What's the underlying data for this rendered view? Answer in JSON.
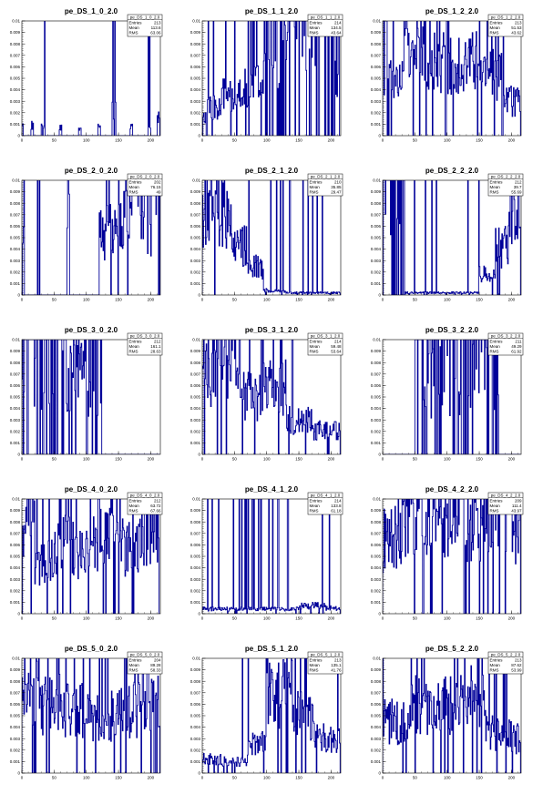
{
  "chart_data": [
    {
      "type": "line",
      "title": "pe_DS_1_0_2.0",
      "xlim": [
        0,
        215
      ],
      "ylim": [
        0,
        0.01
      ],
      "y_ticks": [
        "0",
        "0.001",
        "0.002",
        "0.003",
        "0.004",
        "0.005",
        "0.006",
        "0.007",
        "0.008",
        "0.009",
        "0.01"
      ],
      "x_ticks": [
        "0",
        "50",
        "100",
        "150",
        "200"
      ],
      "stats": {
        "name": "pe_DS_1_0_2.0",
        "labels": [
          "Entries",
          "Mean",
          "RMS"
        ],
        "values": [
          "213",
          "113.6",
          "63.06"
        ]
      },
      "bands": [
        [
          0,
          2,
          0.0012
        ],
        [
          14,
          18,
          0.0009
        ],
        [
          30,
          36,
          0.001
        ],
        [
          58,
          62,
          0.0008
        ],
        [
          88,
          92,
          0.0006
        ],
        [
          118,
          122,
          0.0011
        ],
        [
          140,
          146,
          0.0021
        ],
        [
          168,
          172,
          0.0008
        ],
        [
          196,
          200,
          0.001
        ],
        [
          210,
          214,
          0.0015
        ]
      ]
    },
    {
      "type": "line",
      "title": "pe_DS_1_1_2.0",
      "xlim": [
        0,
        215
      ],
      "ylim": [
        0,
        0.01
      ],
      "y_ticks": [
        "0",
        "0.001",
        "0.002",
        "0.003",
        "0.004",
        "0.005",
        "0.006",
        "0.007",
        "0.008",
        "0.009",
        "0.01"
      ],
      "x_ticks": [
        "0",
        "50",
        "100",
        "150",
        "200"
      ],
      "stats": {
        "name": "pe_DS_1_1_2.0",
        "labels": [
          "Entries",
          "Mean",
          "RMS"
        ],
        "values": [
          "214",
          "134.5",
          "43.64"
        ]
      },
      "bands": [
        [
          0,
          6,
          0.0014
        ],
        [
          8,
          30,
          0.0024
        ],
        [
          30,
          62,
          0.0036
        ],
        [
          62,
          95,
          0.0042
        ],
        [
          95,
          110,
          0.01
        ],
        [
          110,
          150,
          0.01
        ],
        [
          150,
          175,
          0.01
        ],
        [
          175,
          215,
          0.01
        ]
      ]
    },
    {
      "type": "line",
      "title": "pe_DS_1_2_2.0",
      "xlim": [
        0,
        215
      ],
      "ylim": [
        0,
        0.01
      ],
      "y_ticks": [
        "0",
        "0.001",
        "0.002",
        "0.003",
        "0.004",
        "0.005",
        "0.006",
        "0.007",
        "0.008",
        "0.009",
        "0.01"
      ],
      "x_ticks": [
        "0",
        "50",
        "100",
        "150",
        "200"
      ],
      "stats": {
        "name": "pe_DS_1_2_2.0",
        "labels": [
          "Entries",
          "Mean",
          "RMS"
        ],
        "values": [
          "213",
          "51.53",
          "43.62"
        ]
      },
      "bands": [
        [
          0,
          10,
          0.01
        ],
        [
          10,
          30,
          0.005
        ],
        [
          30,
          70,
          0.0075
        ],
        [
          70,
          110,
          0.0062
        ],
        [
          110,
          150,
          0.0065
        ],
        [
          150,
          185,
          0.0052
        ],
        [
          185,
          215,
          0.003
        ]
      ]
    },
    {
      "type": "line",
      "title": "pe_DS_2_0_2.0",
      "xlim": [
        0,
        215
      ],
      "ylim": [
        0,
        0.01
      ],
      "y_ticks": [
        "0",
        "0.001",
        "0.002",
        "0.003",
        "0.004",
        "0.005",
        "0.006",
        "0.007",
        "0.008",
        "0.009",
        "0.01"
      ],
      "x_ticks": [
        "0",
        "50",
        "100",
        "150",
        "200"
      ],
      "stats": {
        "name": "pe_DS_2_0_2.0",
        "labels": [
          "Entries",
          "Mean",
          "RMS"
        ],
        "values": [
          "202",
          "76.15",
          "49"
        ]
      },
      "bands": [
        [
          0,
          4,
          0.01
        ],
        [
          24,
          28,
          0.01
        ],
        [
          70,
          74,
          0.01
        ],
        [
          120,
          150,
          0.0055
        ],
        [
          150,
          170,
          0.0068
        ],
        [
          170,
          190,
          0.0085
        ],
        [
          190,
          215,
          0.01
        ]
      ]
    },
    {
      "type": "line",
      "title": "pe_DS_2_1_2.0",
      "xlim": [
        0,
        215
      ],
      "ylim": [
        0,
        0.01
      ],
      "y_ticks": [
        "0",
        "0.001",
        "0.002",
        "0.003",
        "0.004",
        "0.005",
        "0.006",
        "0.007",
        "0.008",
        "0.009",
        "0.01"
      ],
      "x_ticks": [
        "0",
        "50",
        "100",
        "150",
        "200"
      ],
      "stats": {
        "name": "pe_DS_2_1_2.0",
        "labels": [
          "Entries",
          "Mean",
          "RMS"
        ],
        "values": [
          "210",
          "35.85",
          "29.47"
        ]
      },
      "bands": [
        [
          0,
          20,
          0.0075
        ],
        [
          20,
          45,
          0.0072
        ],
        [
          45,
          70,
          0.0042
        ],
        [
          70,
          95,
          0.0025
        ],
        [
          95,
          130,
          0.0004
        ],
        [
          130,
          215,
          0.0002
        ]
      ]
    },
    {
      "type": "line",
      "title": "pe_DS_2_2_2.0",
      "xlim": [
        0,
        215
      ],
      "ylim": [
        0,
        0.01
      ],
      "y_ticks": [
        "0",
        "0.001",
        "0.002",
        "0.003",
        "0.004",
        "0.005",
        "0.006",
        "0.007",
        "0.008",
        "0.009",
        "0.01"
      ],
      "x_ticks": [
        "0",
        "50",
        "100",
        "150",
        "200"
      ],
      "stats": {
        "name": "pe_DS_2_2_2.0",
        "labels": [
          "Entries",
          "Mean",
          "RMS"
        ],
        "values": [
          "212",
          "39.7",
          "55.69"
        ]
      },
      "bands": [
        [
          0,
          20,
          0.01
        ],
        [
          20,
          35,
          0.01
        ],
        [
          35,
          150,
          0.0002
        ],
        [
          150,
          175,
          0.0018
        ],
        [
          175,
          195,
          0.0042
        ],
        [
          195,
          215,
          0.0078
        ]
      ]
    },
    {
      "type": "line",
      "title": "pe_DS_3_0_2.0",
      "xlim": [
        0,
        215
      ],
      "ylim": [
        0,
        0.01
      ],
      "y_ticks": [
        "0",
        "0.001",
        "0.002",
        "0.003",
        "0.004",
        "0.005",
        "0.006",
        "0.007",
        "0.008",
        "0.009",
        "0.01"
      ],
      "x_ticks": [
        "0",
        "50",
        "100",
        "150",
        "200"
      ],
      "stats": {
        "name": "pe_DS_3_0_2.0",
        "labels": [
          "Entries",
          "Mean",
          "RMS"
        ],
        "values": [
          "212",
          "161.1",
          "28.63"
        ]
      },
      "bands": [
        [
          0,
          70,
          0.01
        ],
        [
          70,
          85,
          0.0068
        ],
        [
          85,
          100,
          0.0082
        ],
        [
          100,
          125,
          0.01
        ],
        [
          125,
          215,
          0.0
        ]
      ]
    },
    {
      "type": "line",
      "title": "pe_DS_3_1_2.0",
      "xlim": [
        0,
        215
      ],
      "ylim": [
        0,
        0.01
      ],
      "y_ticks": [
        "0",
        "0.001",
        "0.002",
        "0.003",
        "0.004",
        "0.005",
        "0.006",
        "0.007",
        "0.008",
        "0.009",
        "0.01"
      ],
      "x_ticks": [
        "0",
        "50",
        "100",
        "150",
        "200"
      ],
      "stats": {
        "name": "pe_DS_3_1_2.0",
        "labels": [
          "Entries",
          "Mean",
          "RMS"
        ],
        "values": [
          "214",
          "59.48",
          "53.64"
        ]
      },
      "bands": [
        [
          0,
          30,
          0.0075
        ],
        [
          30,
          60,
          0.0085
        ],
        [
          60,
          90,
          0.005
        ],
        [
          90,
          130,
          0.006
        ],
        [
          130,
          170,
          0.003
        ],
        [
          170,
          215,
          0.0022
        ]
      ]
    },
    {
      "type": "line",
      "title": "pe_DS_3_2_2.0",
      "xlim": [
        0,
        215
      ],
      "ylim": [
        0,
        0.01
      ],
      "y_ticks": [
        "0",
        "0.001",
        "0.002",
        "0.003",
        "0.004",
        "0.005",
        "0.006",
        "0.007",
        "0.008",
        "0.009",
        "0.01"
      ],
      "x_ticks": [
        "0",
        "50",
        "100",
        "150",
        "200"
      ],
      "stats": {
        "name": "pe_DS_3_2_2.0",
        "labels": [
          "Entries",
          "Mean",
          "RMS"
        ],
        "values": [
          "211",
          "49.29",
          "61.92"
        ]
      },
      "bands": [
        [
          0,
          50,
          0.0
        ],
        [
          50,
          90,
          0.01
        ],
        [
          90,
          150,
          0.01
        ],
        [
          150,
          180,
          0.01
        ],
        [
          180,
          215,
          0.0
        ]
      ]
    },
    {
      "type": "line",
      "title": "pe_DS_4_0_2.0",
      "xlim": [
        0,
        215
      ],
      "ylim": [
        0,
        0.01
      ],
      "y_ticks": [
        "0",
        "0.001",
        "0.002",
        "0.003",
        "0.004",
        "0.005",
        "0.006",
        "0.007",
        "0.008",
        "0.009",
        "0.01"
      ],
      "x_ticks": [
        "0",
        "50",
        "100",
        "150",
        "200"
      ],
      "stats": {
        "name": "pe_DS_4_0_2.0",
        "labels": [
          "Entries",
          "Mean",
          "RMS"
        ],
        "values": [
          "212",
          "63.72",
          "67.66"
        ]
      },
      "bands": [
        [
          0,
          20,
          0.0085
        ],
        [
          20,
          50,
          0.0045
        ],
        [
          50,
          80,
          0.006
        ],
        [
          80,
          110,
          0.005
        ],
        [
          110,
          150,
          0.0065
        ],
        [
          150,
          190,
          0.0058
        ],
        [
          190,
          215,
          0.0075
        ]
      ]
    },
    {
      "type": "line",
      "title": "pe_DS_4_1_2.0",
      "xlim": [
        0,
        215
      ],
      "ylim": [
        0,
        0.01
      ],
      "y_ticks": [
        "0",
        "0.001",
        "0.002",
        "0.003",
        "0.004",
        "0.005",
        "0.006",
        "0.007",
        "0.008",
        "0.009",
        "0.01"
      ],
      "x_ticks": [
        "0",
        "50",
        "100",
        "150",
        "200"
      ],
      "stats": {
        "name": "pe_DS_4_1_2.0",
        "labels": [
          "Entries",
          "Mean",
          "RMS"
        ],
        "values": [
          "214",
          "133.8",
          "61.18"
        ]
      },
      "bands": [
        [
          0,
          50,
          0.0004
        ],
        [
          50,
          100,
          0.0004
        ],
        [
          100,
          150,
          0.0004
        ],
        [
          150,
          190,
          0.0007
        ],
        [
          190,
          215,
          0.0005
        ]
      ]
    },
    {
      "type": "line",
      "title": "pe_DS_4_2_2.0",
      "xlim": [
        0,
        215
      ],
      "ylim": [
        0,
        0.01
      ],
      "y_ticks": [
        "0",
        "0.001",
        "0.002",
        "0.003",
        "0.004",
        "0.005",
        "0.006",
        "0.007",
        "0.008",
        "0.009",
        "0.01"
      ],
      "x_ticks": [
        "0",
        "50",
        "100",
        "150",
        "200"
      ],
      "stats": {
        "name": "pe_DS_4_2_2.0",
        "labels": [
          "Entries",
          "Mean",
          "RMS"
        ],
        "values": [
          "209",
          "111.4",
          "43.97"
        ]
      },
      "bands": [
        [
          0,
          30,
          0.0065
        ],
        [
          30,
          60,
          0.009
        ],
        [
          60,
          110,
          0.0085
        ],
        [
          110,
          160,
          0.008
        ],
        [
          160,
          200,
          0.009
        ],
        [
          200,
          215,
          0.0075
        ]
      ]
    },
    {
      "type": "line",
      "title": "pe_DS_5_0_2.0",
      "xlim": [
        0,
        215
      ],
      "ylim": [
        0,
        0.01
      ],
      "y_ticks": [
        "0",
        "0.001",
        "0.002",
        "0.003",
        "0.004",
        "0.005",
        "0.006",
        "0.007",
        "0.008",
        "0.009",
        "0.01"
      ],
      "x_ticks": [
        "0",
        "50",
        "100",
        "150",
        "200"
      ],
      "stats": {
        "name": "pe_DS_5_0_2.0",
        "labels": [
          "Entries",
          "Mean",
          "RMS"
        ],
        "values": [
          "204",
          "89.28",
          "58.33"
        ]
      },
      "bands": [
        [
          0,
          30,
          0.0075
        ],
        [
          30,
          60,
          0.006
        ],
        [
          60,
          100,
          0.0055
        ],
        [
          100,
          140,
          0.005
        ],
        [
          140,
          180,
          0.0055
        ],
        [
          180,
          215,
          0.0065
        ]
      ]
    },
    {
      "type": "line",
      "title": "pe_DS_5_1_2.0",
      "xlim": [
        0,
        215
      ],
      "ylim": [
        0,
        0.01
      ],
      "y_ticks": [
        "0",
        "0.001",
        "0.002",
        "0.003",
        "0.004",
        "0.005",
        "0.006",
        "0.007",
        "0.008",
        "0.009",
        "0.01"
      ],
      "x_ticks": [
        "0",
        "50",
        "100",
        "150",
        "200"
      ],
      "stats": {
        "name": "pe_DS_5_1_2.0",
        "labels": [
          "Entries",
          "Mean",
          "RMS"
        ],
        "values": [
          "213",
          "135.1",
          "41.76"
        ]
      },
      "bands": [
        [
          0,
          30,
          0.0012
        ],
        [
          30,
          70,
          0.001
        ],
        [
          70,
          100,
          0.0025
        ],
        [
          100,
          140,
          0.007
        ],
        [
          140,
          175,
          0.005
        ],
        [
          175,
          215,
          0.003
        ]
      ]
    },
    {
      "type": "line",
      "title": "pe_DS_5_2_2.0",
      "xlim": [
        0,
        215
      ],
      "ylim": [
        0,
        0.01
      ],
      "y_ticks": [
        "0",
        "0.001",
        "0.002",
        "0.003",
        "0.004",
        "0.005",
        "0.006",
        "0.007",
        "0.008",
        "0.009",
        "0.01"
      ],
      "x_ticks": [
        "0",
        "50",
        "100",
        "150",
        "200"
      ],
      "stats": {
        "name": "pe_DS_5_2_2.0",
        "labels": [
          "Entries",
          "Mean",
          "RMS"
        ],
        "values": [
          "213",
          "87.62",
          "53.99"
        ]
      },
      "bands": [
        [
          0,
          40,
          0.0045
        ],
        [
          40,
          80,
          0.006
        ],
        [
          80,
          120,
          0.0058
        ],
        [
          120,
          160,
          0.0065
        ],
        [
          160,
          200,
          0.0035
        ],
        [
          200,
          215,
          0.003
        ]
      ]
    }
  ]
}
